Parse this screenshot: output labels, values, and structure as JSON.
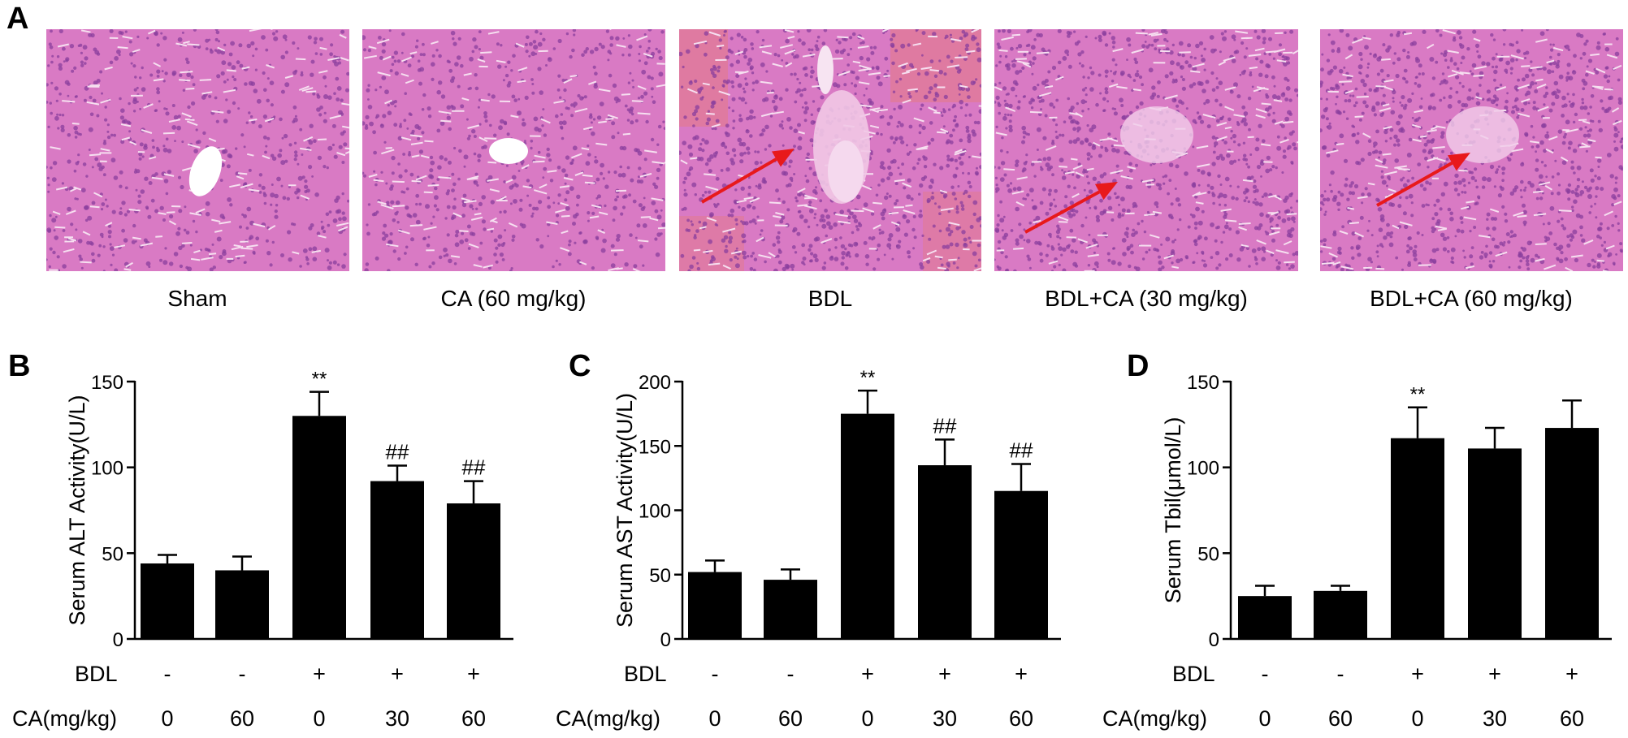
{
  "panel_a": {
    "letter": "A",
    "images": [
      {
        "caption": "Sham",
        "arrow": false,
        "vessel": "central",
        "hemorrhage": false
      },
      {
        "caption": "CA (60 mg/kg)",
        "arrow": false,
        "vessel": "central-small",
        "hemorrhage": false
      },
      {
        "caption": "BDL",
        "arrow": true,
        "vessel": "portal",
        "hemorrhage": true
      },
      {
        "caption": "BDL+CA (30 mg/kg)",
        "arrow": true,
        "vessel": "portal-faint",
        "hemorrhage": false
      },
      {
        "caption": "BDL+CA (60 mg/kg)",
        "arrow": true,
        "vessel": "portal-faint",
        "hemorrhage": false
      }
    ],
    "colors": {
      "tissue": "#d97ac4",
      "nuclei": "#8a3f9e",
      "arrow": "#e8191b",
      "blood": "#e37a8a"
    }
  },
  "bdl_label": "BDL",
  "ca_label": "CA(mg/kg)",
  "bdl_signs": [
    "-",
    "-",
    "+",
    "+",
    "+"
  ],
  "ca_doses": [
    "0",
    "60",
    "0",
    "30",
    "60"
  ],
  "chart_data": [
    {
      "panel": "B",
      "type": "bar",
      "ylabel": "Serum ALT Activity(U/L)",
      "ylim": [
        0,
        150
      ],
      "yticks": [
        0,
        50,
        100,
        150
      ],
      "categories": [
        "1",
        "2",
        "3",
        "4",
        "5"
      ],
      "values": [
        44,
        40,
        130,
        92,
        79
      ],
      "errors": [
        5,
        8,
        14,
        9,
        13
      ],
      "annotations": [
        "",
        "",
        "**",
        "##",
        "##"
      ]
    },
    {
      "panel": "C",
      "type": "bar",
      "ylabel": "Serum AST Activity(U/L)",
      "ylim": [
        0,
        200
      ],
      "yticks": [
        0,
        50,
        100,
        150,
        200
      ],
      "categories": [
        "1",
        "2",
        "3",
        "4",
        "5"
      ],
      "values": [
        52,
        46,
        175,
        135,
        115
      ],
      "errors": [
        9,
        8,
        18,
        20,
        21
      ],
      "annotations": [
        "",
        "",
        "**",
        "##",
        "##"
      ]
    },
    {
      "panel": "D",
      "type": "bar",
      "ylabel": "Serum Tbil(μmol/L)",
      "ylim": [
        0,
        150
      ],
      "yticks": [
        0,
        50,
        100,
        150
      ],
      "categories": [
        "1",
        "2",
        "3",
        "4",
        "5"
      ],
      "values": [
        25,
        28,
        117,
        111,
        123
      ],
      "errors": [
        6,
        3,
        18,
        12,
        16
      ],
      "annotations": [
        "",
        "",
        "**",
        "",
        ""
      ]
    }
  ]
}
